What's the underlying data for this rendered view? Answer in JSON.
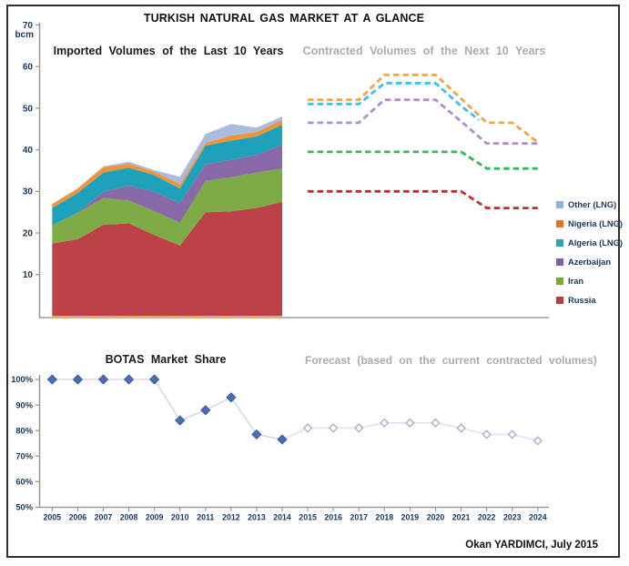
{
  "header": {
    "title": "TURKISH NATURAL GAS MARKET AT A GLANCE"
  },
  "top_chart": {
    "subtitle_left": "Imported Volumes of the Last 10 Years",
    "subtitle_right": "Contracted Volumes of the Next 10 Years",
    "unit_label": "bcm"
  },
  "bottom_chart": {
    "subtitle_left": "BOTAS Market Share",
    "subtitle_right": "Forecast (based on the current contracted volumes)"
  },
  "legend": {
    "items": [
      {
        "label": "Other (LNG)",
        "color": "#95B3D7"
      },
      {
        "label": "Nigeria (LNG)",
        "color": "#E8732A"
      },
      {
        "label": "Algeria (LNG)",
        "color": "#2BA3B9"
      },
      {
        "label": "Azerbaijan",
        "color": "#7D5FA3"
      },
      {
        "label": "Iran",
        "color": "#7BA53D"
      },
      {
        "label": "Russia",
        "color": "#B43B40"
      }
    ]
  },
  "footer": {
    "credit": "Okan YARDIMCI, July 2015"
  },
  "chart_data": [
    {
      "type": "area",
      "title": "Imported Volumes of the Last 10 Years / Contracted Volumes of the Next 10 Years",
      "ylabel": "bcm",
      "ylim": [
        0,
        70
      ],
      "yticks": [
        70,
        60,
        50,
        40,
        30,
        20,
        10
      ],
      "grid": false,
      "categories": [
        2005,
        2006,
        2007,
        2008,
        2009,
        2010,
        2011,
        2012,
        2013,
        2014
      ],
      "stacked_series": [
        {
          "name": "Russia",
          "color": "#BD4247",
          "values": [
            17.5,
            18.5,
            22.0,
            22.3,
            19.5,
            17.0,
            25.0,
            25.2,
            26.0,
            27.5
          ]
        },
        {
          "name": "Iran",
          "color": "#7EAB45",
          "values": [
            4.3,
            6.3,
            6.4,
            5.5,
            5.7,
            5.5,
            7.5,
            8.2,
            8.5,
            8.0
          ]
        },
        {
          "name": "Azerbaijan",
          "color": "#8A69A9",
          "values": [
            0.0,
            0.1,
            1.5,
            3.6,
            4.7,
            4.7,
            4.0,
            4.2,
            4.3,
            5.7
          ]
        },
        {
          "name": "Algeria (LNG)",
          "color": "#1EA2BB",
          "values": [
            4.2,
            4.7,
            4.6,
            4.3,
            4.0,
            3.5,
            4.5,
            4.6,
            4.4,
            4.8
          ]
        },
        {
          "name": "Nigeria (LNG)",
          "color": "#F0943A",
          "values": [
            0.9,
            1.1,
            1.3,
            1.0,
            0.8,
            1.0,
            0.7,
            1.2,
            1.1,
            1.2
          ]
        },
        {
          "name": "Other (LNG)",
          "color": "#A9BCDE",
          "values": [
            0.1,
            0.1,
            0.2,
            0.4,
            0.4,
            1.8,
            2.1,
            2.8,
            1.0,
            0.8
          ]
        }
      ],
      "contracted_lines": [
        {
          "name": "Russia contracted",
          "color": "#C5292C",
          "points": [
            [
              2015,
              30
            ],
            [
              2016,
              30
            ],
            [
              2017,
              30
            ],
            [
              2018,
              30
            ],
            [
              2019,
              30
            ],
            [
              2020,
              30
            ],
            [
              2021,
              30
            ],
            [
              2022,
              26
            ],
            [
              2023,
              26
            ],
            [
              2024,
              26
            ]
          ]
        },
        {
          "name": "Iran contracted",
          "color": "#2DB85A",
          "points": [
            [
              2015,
              39.5
            ],
            [
              2016,
              39.5
            ],
            [
              2017,
              39.5
            ],
            [
              2018,
              39.5
            ],
            [
              2019,
              39.5
            ],
            [
              2020,
              39.5
            ],
            [
              2021,
              39.5
            ],
            [
              2022,
              35.5
            ],
            [
              2023,
              35.5
            ],
            [
              2024,
              35.5
            ]
          ]
        },
        {
          "name": "Azerbaijan contracted",
          "color": "#B28DC9",
          "points": [
            [
              2015,
              46.5
            ],
            [
              2016,
              46.5
            ],
            [
              2017,
              46.5
            ],
            [
              2018,
              52
            ],
            [
              2019,
              52
            ],
            [
              2020,
              52
            ],
            [
              2021,
              46.8
            ],
            [
              2022,
              41.5
            ],
            [
              2023,
              41.5
            ],
            [
              2024,
              41.5
            ]
          ]
        },
        {
          "name": "Algeria contracted",
          "color": "#3AC2EE",
          "points": [
            [
              2015,
              51
            ],
            [
              2016,
              51
            ],
            [
              2017,
              51
            ],
            [
              2018,
              56
            ],
            [
              2019,
              56
            ],
            [
              2020,
              56
            ],
            [
              2021,
              50.5
            ],
            [
              2021.7,
              47.2
            ]
          ]
        },
        {
          "name": "Nigeria contracted",
          "color": "#F4A443",
          "points": [
            [
              2015,
              52
            ],
            [
              2016,
              52
            ],
            [
              2017,
              52
            ],
            [
              2018,
              58
            ],
            [
              2019,
              58
            ],
            [
              2020,
              58
            ],
            [
              2021,
              52.3
            ],
            [
              2022,
              46.5
            ],
            [
              2023,
              46.5
            ],
            [
              2024,
              41.8
            ]
          ]
        }
      ],
      "baseline_dashed": {
        "name": "historical contracted baseline",
        "color": "#F4A443",
        "value": 0.4,
        "from": 2005,
        "to": 2014
      }
    },
    {
      "type": "line",
      "title": "BOTAS Market Share / Forecast (based on the current contracted volumes)",
      "ylim": [
        50,
        100
      ],
      "yticks": [
        {
          "value": 100,
          "label": "100%"
        },
        {
          "value": 90,
          "label": "90%"
        },
        {
          "value": 80,
          "label": "80%"
        },
        {
          "value": 70,
          "label": "70%"
        },
        {
          "value": 60,
          "label": "60%"
        },
        {
          "value": 50,
          "label": "50%"
        }
      ],
      "grid": false,
      "categories": [
        2005,
        2006,
        2007,
        2008,
        2009,
        2010,
        2011,
        2012,
        2013,
        2014,
        2015,
        2016,
        2017,
        2018,
        2019,
        2020,
        2021,
        2022,
        2023,
        2024
      ],
      "series": [
        {
          "name": "BOTAS market share (actual)",
          "marker": "filled-diamond",
          "marker_color": "#4D6CB8",
          "marker_stroke": "#3A5795",
          "line_color": "#D9D9D9",
          "x": [
            2005,
            2006,
            2007,
            2008,
            2009,
            2010,
            2011,
            2012,
            2013,
            2014
          ],
          "values": [
            100,
            100,
            100,
            100,
            100,
            84,
            88,
            93,
            78.5,
            76.5
          ]
        },
        {
          "name": "BOTAS market share (forecast)",
          "marker": "open-diamond",
          "marker_color": "#B3A0CC",
          "marker_stroke": "#B3A0CC",
          "line_color": "#E4DFEE",
          "x": [
            2015,
            2016,
            2017,
            2018,
            2019,
            2020,
            2021,
            2022,
            2023,
            2024
          ],
          "values": [
            81,
            81,
            81,
            83,
            83,
            83,
            81,
            78.5,
            78.5,
            76
          ]
        }
      ]
    }
  ]
}
